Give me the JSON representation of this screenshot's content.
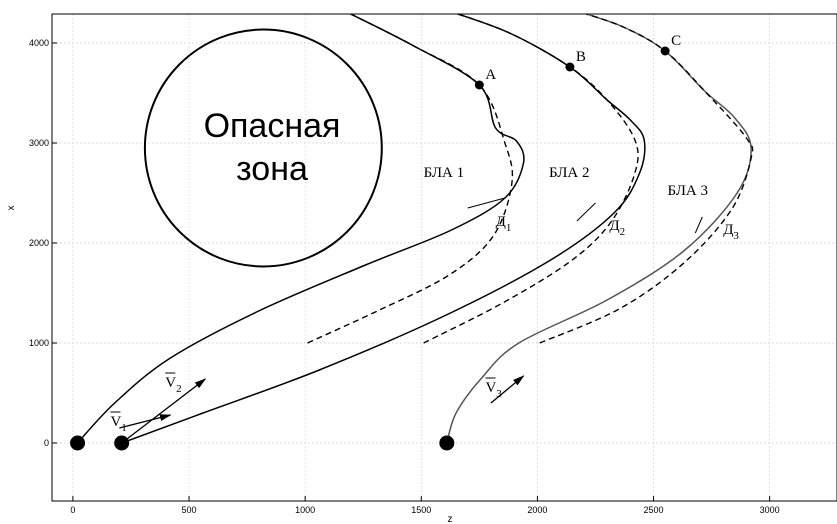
{
  "chart_data": {
    "type": "line",
    "xlabel": "z",
    "ylabel": "x",
    "xlim": [
      -90,
      3290
    ],
    "ylim": [
      -580,
      4290
    ],
    "grid": true,
    "x_ticks": [
      "0",
      "500",
      "1000",
      "1500",
      "2000",
      "2500",
      "3000"
    ],
    "y_ticks": [
      "0",
      "1000",
      "2000",
      "3000",
      "4000"
    ],
    "zone": {
      "line1": "Опасная",
      "line2": "зона",
      "center": [
        820,
        2950
      ],
      "radius": 510
    },
    "series": [
      {
        "name": "БЛА 1",
        "style": "solid",
        "color": "#000000",
        "points": [
          [
            20,
            0
          ],
          [
            180,
            400
          ],
          [
            420,
            850
          ],
          [
            800,
            1320
          ],
          [
            1260,
            1780
          ],
          [
            1630,
            2130
          ],
          [
            1860,
            2450
          ],
          [
            1940,
            2800
          ],
          [
            1910,
            3020
          ],
          [
            1820,
            3150
          ],
          [
            1750,
            3580
          ],
          [
            1460,
            3980
          ],
          [
            1170,
            4320
          ]
        ]
      },
      {
        "name": "Д1",
        "style": "dashed",
        "color": "#000000",
        "points": [
          [
            1010,
            1000
          ],
          [
            1320,
            1330
          ],
          [
            1620,
            1680
          ],
          [
            1810,
            2070
          ],
          [
            1890,
            2600
          ],
          [
            1860,
            3000
          ],
          [
            1750,
            3580
          ],
          [
            1460,
            3980
          ],
          [
            1170,
            4320
          ]
        ]
      },
      {
        "name": "БЛА 2",
        "style": "solid",
        "color": "#000000",
        "points": [
          [
            210,
            0
          ],
          [
            560,
            300
          ],
          [
            1050,
            720
          ],
          [
            1580,
            1250
          ],
          [
            2050,
            1820
          ],
          [
            2330,
            2300
          ],
          [
            2440,
            2700
          ],
          [
            2460,
            3030
          ],
          [
            2400,
            3230
          ],
          [
            2300,
            3430
          ],
          [
            2140,
            3760
          ],
          [
            1880,
            4100
          ],
          [
            1620,
            4320
          ]
        ]
      },
      {
        "name": "Д2",
        "style": "dashed",
        "color": "#000000",
        "points": [
          [
            1510,
            1000
          ],
          [
            1850,
            1400
          ],
          [
            2150,
            1830
          ],
          [
            2320,
            2220
          ],
          [
            2420,
            2700
          ],
          [
            2420,
            3030
          ],
          [
            2300,
            3430
          ],
          [
            2140,
            3760
          ],
          [
            1880,
            4100
          ],
          [
            1620,
            4320
          ]
        ]
      },
      {
        "name": "БЛА 3",
        "style": "solid",
        "color": "#555555",
        "points": [
          [
            1610,
            0
          ],
          [
            1650,
            300
          ],
          [
            1760,
            650
          ],
          [
            1920,
            1000
          ],
          [
            2300,
            1430
          ],
          [
            2630,
            1920
          ],
          [
            2860,
            2500
          ],
          [
            2920,
            2950
          ],
          [
            2850,
            3250
          ],
          [
            2720,
            3520
          ],
          [
            2550,
            3920
          ],
          [
            2370,
            4160
          ],
          [
            2170,
            4320
          ]
        ]
      },
      {
        "name": "Д3",
        "style": "dashed",
        "color": "#000000",
        "points": [
          [
            2010,
            1000
          ],
          [
            2360,
            1350
          ],
          [
            2640,
            1820
          ],
          [
            2840,
            2350
          ],
          [
            2920,
            2850
          ],
          [
            2900,
            3050
          ],
          [
            2720,
            3520
          ],
          [
            2550,
            3920
          ],
          [
            2370,
            4160
          ],
          [
            2170,
            4320
          ]
        ]
      }
    ],
    "start_points": [
      [
        20,
        0
      ],
      [
        210,
        0
      ],
      [
        1610,
        0
      ]
    ],
    "marked_points": [
      {
        "label": "A",
        "x": 1750,
        "y": 3580
      },
      {
        "label": "B",
        "x": 2140,
        "y": 3760
      },
      {
        "label": "C",
        "x": 2550,
        "y": 3920
      }
    ],
    "velocity_vectors": [
      {
        "label": "V",
        "sub": "1",
        "from": [
          200,
          150
        ],
        "to": [
          420,
          280
        ]
      },
      {
        "label": "V",
        "sub": "2",
        "from": [
          210,
          0
        ],
        "to": [
          570,
          640
        ]
      },
      {
        "label": "V",
        "sub": "3",
        "from": [
          1800,
          400
        ],
        "to": [
          1940,
          670
        ]
      }
    ],
    "curve_labels": [
      {
        "text": "БЛА 1",
        "x": 1510,
        "y": 2660,
        "leader": [
          1700,
          2350,
          1860,
          2450
        ]
      },
      {
        "text": "БЛА 2",
        "x": 2050,
        "y": 2660,
        "leader": [
          2170,
          2220,
          2250,
          2400
        ]
      },
      {
        "text": "БЛА 3",
        "x": 2560,
        "y": 2480,
        "leader": [
          2680,
          2100,
          2710,
          2260
        ]
      },
      {
        "text": "Д",
        "sub": "1",
        "x": 1820,
        "y": 2170
      },
      {
        "text": "Д",
        "sub": "2",
        "x": 2310,
        "y": 2130
      },
      {
        "text": "Д",
        "sub": "3",
        "x": 2800,
        "y": 2090
      }
    ]
  }
}
